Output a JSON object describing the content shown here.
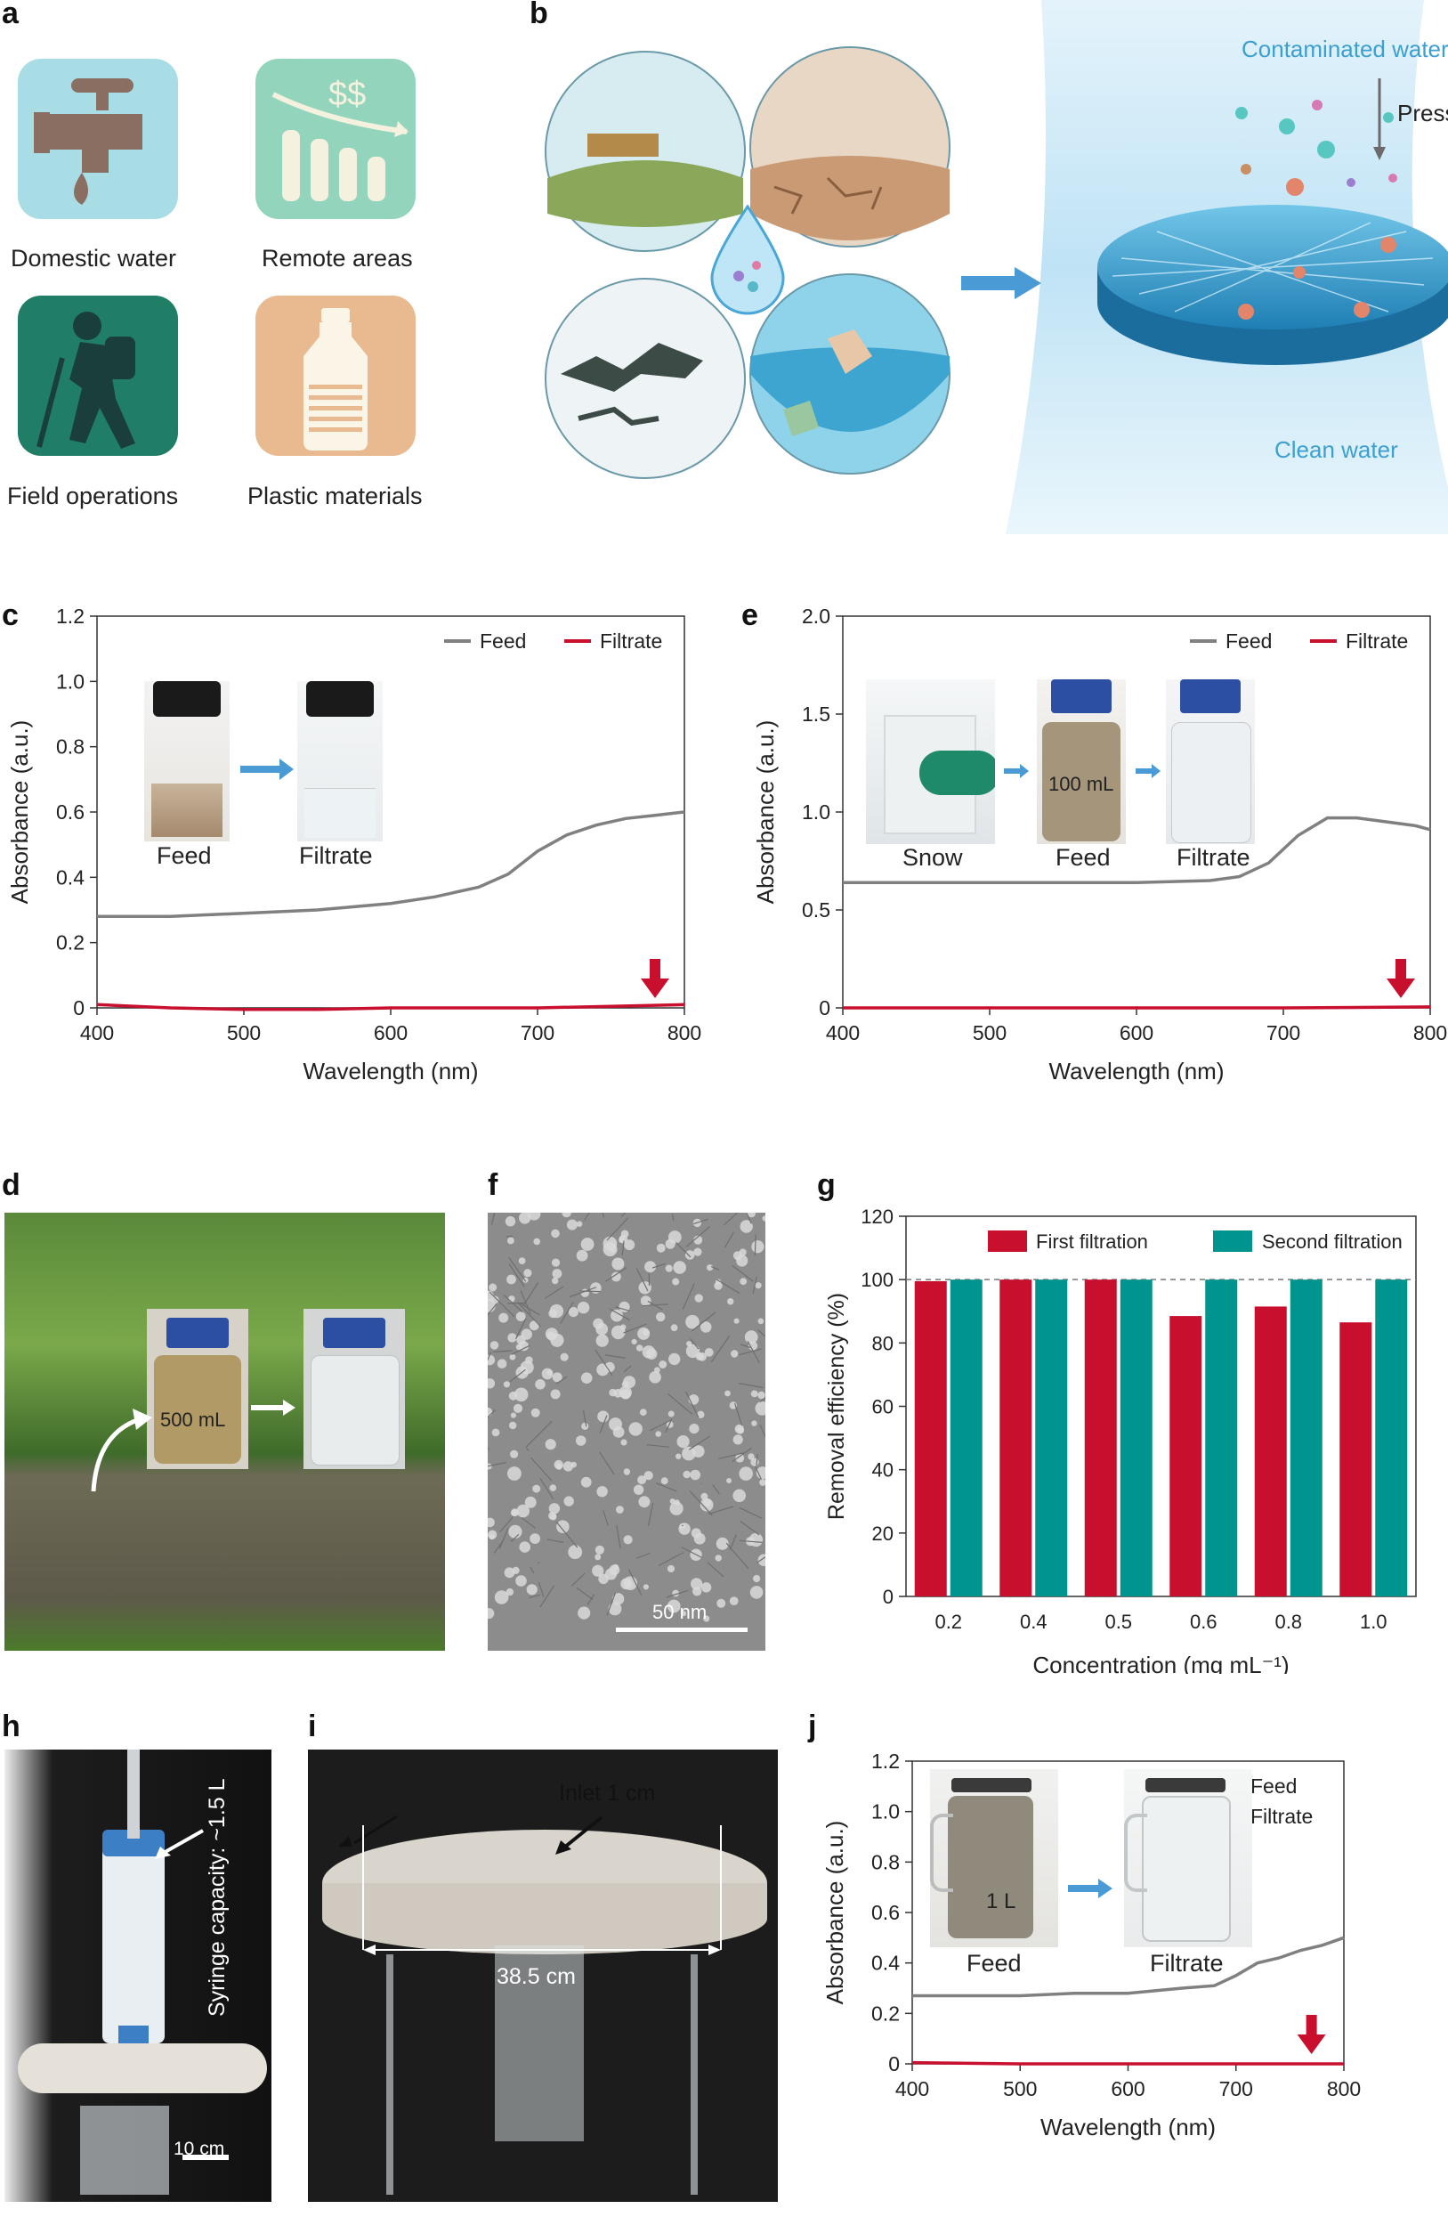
{
  "panels": {
    "a": "a",
    "b": "b",
    "c": "c",
    "d": "d",
    "e": "e",
    "f": "f",
    "g": "g",
    "h": "h",
    "i": "i",
    "j": "j"
  },
  "panel_a": {
    "items": [
      {
        "label": "Domestic water",
        "icon": "faucet-icon",
        "color": "#a9dde6"
      },
      {
        "label": "Remote areas",
        "icon": "declining-bars-icon",
        "color": "#93d5bc"
      },
      {
        "label": "Field operations",
        "icon": "hiker-icon",
        "color": "#207e67"
      },
      {
        "label": "Plastic materials",
        "icon": "plastic-bottle-icon",
        "color": "#e9b98f"
      }
    ],
    "dollar_signs": "$$"
  },
  "panel_b": {
    "top_label": "Contaminated water",
    "press_label": "Press",
    "bottom_label": "Clean water"
  },
  "panel_c": {
    "inset": {
      "left": "Feed",
      "right": "Filtrate"
    }
  },
  "panel_e": {
    "inset": {
      "left": "Snow",
      "middle": "Feed",
      "right": "Filtrate",
      "volume": "100 mL"
    }
  },
  "panel_d": {
    "volume": "500 mL"
  },
  "panel_f": {
    "scale": "50 nm"
  },
  "panel_h": {
    "syringe": "Syringe capacity: ~1.5 L",
    "scale": "10 cm"
  },
  "panel_i": {
    "inlet": "Inlet 1 cm",
    "diameter": "38.5 cm"
  },
  "panel_j": {
    "inset": {
      "left": "Feed",
      "right": "Filtrate",
      "volume": "1 L"
    }
  },
  "colors": {
    "feed": "#808080",
    "filtrate": "#c8102e",
    "first": "#c8102e",
    "second": "#00948f",
    "arrow": "#4a9ad6"
  },
  "chart_data": [
    {
      "id": "c",
      "type": "line",
      "xlabel": "Wavelength (nm)",
      "ylabel": "Absorbance (a.u.)",
      "xlim": [
        400,
        800
      ],
      "ylim": [
        0,
        1.2
      ],
      "xticks": [
        "400",
        "500",
        "600",
        "700",
        "800"
      ],
      "yticks": [
        "0",
        "0.2",
        "0.4",
        "0.6",
        "0.8",
        "1.0",
        "1.2"
      ],
      "legend_position": "top-right",
      "series": [
        {
          "name": "Feed",
          "x": [
            400,
            450,
            500,
            550,
            600,
            630,
            660,
            680,
            700,
            720,
            740,
            760,
            780,
            800
          ],
          "y": [
            0.28,
            0.28,
            0.29,
            0.3,
            0.32,
            0.34,
            0.37,
            0.41,
            0.48,
            0.53,
            0.56,
            0.58,
            0.59,
            0.6
          ]
        },
        {
          "name": "Filtrate",
          "x": [
            400,
            450,
            500,
            550,
            600,
            650,
            700,
            750,
            800
          ],
          "y": [
            0.01,
            0.0,
            -0.005,
            -0.005,
            0.0,
            0.0,
            0.0,
            0.005,
            0.01
          ]
        }
      ]
    },
    {
      "id": "e",
      "type": "line",
      "xlabel": "Wavelength (nm)",
      "ylabel": "Absorbance (a.u.)",
      "xlim": [
        400,
        800
      ],
      "ylim": [
        0,
        2.0
      ],
      "xticks": [
        "400",
        "500",
        "600",
        "700",
        "800"
      ],
      "yticks": [
        "0",
        "0.5",
        "1.0",
        "1.5",
        "2.0"
      ],
      "legend_position": "top-right",
      "series": [
        {
          "name": "Feed",
          "x": [
            400,
            450,
            500,
            550,
            600,
            650,
            670,
            690,
            710,
            730,
            750,
            770,
            790,
            800
          ],
          "y": [
            0.64,
            0.64,
            0.64,
            0.64,
            0.64,
            0.65,
            0.67,
            0.74,
            0.88,
            0.97,
            0.97,
            0.95,
            0.93,
            0.91
          ]
        },
        {
          "name": "Filtrate",
          "x": [
            400,
            500,
            600,
            700,
            800
          ],
          "y": [
            0.0,
            0.0,
            0.0,
            0.0,
            0.005
          ]
        }
      ]
    },
    {
      "id": "g",
      "type": "bar",
      "xlabel": "Concentration (mg mL⁻¹)",
      "ylabel": "Removal efficiency (%)",
      "ylim": [
        0,
        120
      ],
      "yticks": [
        "0",
        "20",
        "40",
        "60",
        "80",
        "100",
        "120"
      ],
      "legend_position": "top",
      "categories": [
        "0.2",
        "0.4",
        "0.5",
        "0.6",
        "0.8",
        "1.0"
      ],
      "series": [
        {
          "name": "First filtration",
          "values": [
            99.5,
            100,
            100,
            88.5,
            91.5,
            86.5
          ]
        },
        {
          "name": "Second filtration",
          "values": [
            100,
            100,
            100,
            100,
            100,
            100
          ]
        }
      ]
    },
    {
      "id": "j",
      "type": "line",
      "xlabel": "Wavelength (nm)",
      "ylabel": "Absorbance (a.u.)",
      "xlim": [
        400,
        800
      ],
      "ylim": [
        0,
        1.2
      ],
      "xticks": [
        "400",
        "500",
        "600",
        "700",
        "800"
      ],
      "yticks": [
        "0",
        "0.2",
        "0.4",
        "0.6",
        "0.8",
        "1.0",
        "1.2"
      ],
      "legend_position": "top-right",
      "series": [
        {
          "name": "Feed",
          "x": [
            400,
            450,
            500,
            550,
            600,
            650,
            680,
            700,
            720,
            740,
            760,
            780,
            800
          ],
          "y": [
            0.27,
            0.27,
            0.27,
            0.28,
            0.28,
            0.3,
            0.31,
            0.35,
            0.4,
            0.42,
            0.45,
            0.47,
            0.5
          ]
        },
        {
          "name": "Filtrate",
          "x": [
            400,
            500,
            600,
            700,
            800
          ],
          "y": [
            0.005,
            0.0,
            0.0,
            0.0,
            0.0
          ]
        }
      ]
    }
  ]
}
